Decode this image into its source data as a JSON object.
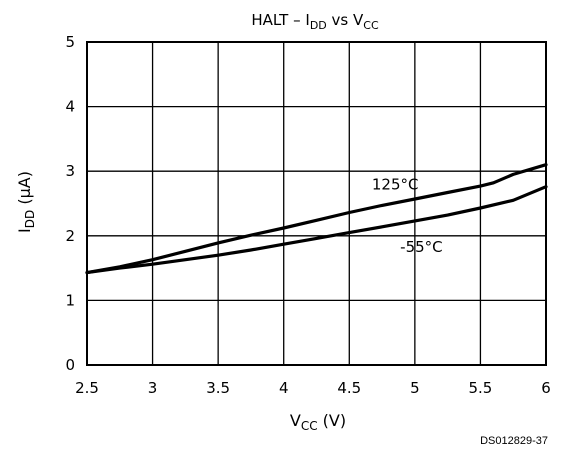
{
  "chart_data": {
    "type": "line",
    "title": {
      "prefix": "HALT – I",
      "sub1": "DD",
      "mid": " vs V",
      "sub2": "CC"
    },
    "xlabel": {
      "main": "V",
      "sub": "CC",
      "unit": " (V)"
    },
    "ylabel": {
      "main": "I",
      "sub": "DD",
      "unit": " (µA)"
    },
    "xlim": [
      2.5,
      6
    ],
    "ylim": [
      0,
      5
    ],
    "x_ticks": [
      "2.5",
      "3",
      "3.5",
      "4",
      "4.5",
      "5",
      "5.5",
      "6"
    ],
    "y_ticks": [
      "0",
      "1",
      "2",
      "3",
      "4",
      "5"
    ],
    "grid": true,
    "series": [
      {
        "name": "125°C",
        "x": [
          2.5,
          2.75,
          3.0,
          3.25,
          3.5,
          3.75,
          4.0,
          4.25,
          4.5,
          4.75,
          5.0,
          5.25,
          5.5,
          5.6,
          5.75,
          6.0
        ],
        "y": [
          1.43,
          1.52,
          1.63,
          1.76,
          1.89,
          2.01,
          2.12,
          2.24,
          2.36,
          2.47,
          2.57,
          2.67,
          2.77,
          2.82,
          2.95,
          3.1
        ]
      },
      {
        "name": "-55°C",
        "x": [
          2.5,
          2.75,
          3.0,
          3.25,
          3.5,
          3.75,
          4.0,
          4.25,
          4.5,
          4.75,
          5.0,
          5.25,
          5.5,
          5.75,
          6.0
        ],
        "y": [
          1.43,
          1.5,
          1.56,
          1.63,
          1.7,
          1.78,
          1.87,
          1.96,
          2.05,
          2.14,
          2.23,
          2.32,
          2.43,
          2.55,
          2.76
        ]
      }
    ]
  },
  "figure_code": "DS012829-37"
}
